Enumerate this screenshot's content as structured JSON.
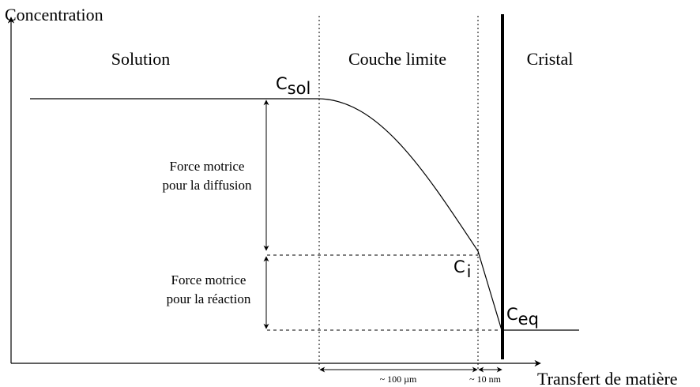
{
  "axes": {
    "y_label": "Concentration",
    "x_label": "Transfert de matière"
  },
  "regions": [
    "Solution",
    "Couche limite",
    "Cristal"
  ],
  "points": [
    {
      "symbol": "C",
      "subscript": "sol"
    },
    {
      "symbol": "C",
      "subscript": "i"
    },
    {
      "symbol": "C",
      "subscript": "eq"
    }
  ],
  "forces": [
    {
      "lines": [
        "Force motrice",
        "pour la diffusion"
      ]
    },
    {
      "lines": [
        "Force motrice",
        "pour la réaction"
      ]
    }
  ],
  "scales": [
    "~ 100 µm",
    "~ 10 nm"
  ]
}
